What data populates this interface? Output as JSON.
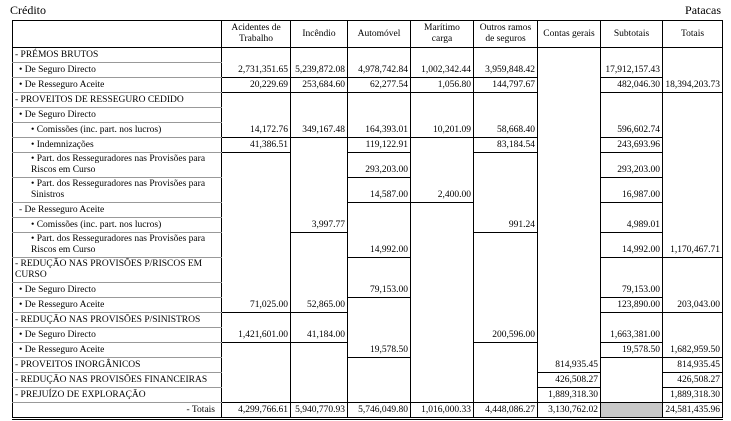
{
  "header": {
    "title": "Crédito",
    "unit": "Patacas"
  },
  "columns": [
    "Acidentes de Trabalho",
    "Incêndio",
    "Automóvel",
    "Marítimo carga",
    "Outros ramos de seguros",
    "Contas gerais",
    "Subtotais",
    "Totais"
  ],
  "sections": [
    {
      "label": "- PRÉMOS BRUTOS",
      "items": [
        {
          "label": "• De Seguro Directo",
          "cells": [
            "2,731,351.65",
            "5,239,872.08",
            "4,978,742.84",
            "1,002,342.44",
            "3,959,848.42",
            null,
            "17,912,157.43",
            null
          ]
        },
        {
          "label": "• De Resseguro Aceite",
          "cells": [
            "20,229.69",
            "253,684.60",
            "62,277.54",
            "1,056.80",
            "144,797.67",
            null,
            "482,046.30",
            "18,394,203.73"
          ]
        }
      ]
    },
    {
      "label": "- PROVEITOS DE RESSEGURO CEDIDO",
      "items": [
        {
          "label": "• De Seguro Directo",
          "items": [
            {
              "label": "• Comissões (inc. part. nos lucros)",
              "cells": [
                "14,172.76",
                "349,167.48",
                "164,393.01",
                "10,201.09",
                "58,668.40",
                null,
                "596,602.74",
                null
              ]
            },
            {
              "label": "• Indemnizações",
              "cells": [
                "41,386.51",
                null,
                "119,122.91",
                null,
                "83,184.54",
                null,
                "243,693.96",
                null
              ]
            },
            {
              "label": "• Part. dos Resseguradores nas Provisões para Riscos em Curso",
              "cells": [
                null,
                null,
                "293,203.00",
                null,
                null,
                null,
                "293,203.00",
                null
              ]
            },
            {
              "label": "• Part. dos Resseguradores nas Provisões para Sinistros",
              "cells": [
                null,
                null,
                "14,587.00",
                "2,400.00",
                null,
                null,
                "16,987.00",
                null
              ]
            }
          ]
        },
        {
          "label": "- De Resseguro Aceite",
          "items": [
            {
              "label": "• Comissões (inc. part. nos lucros)",
              "cells": [
                null,
                "3,997.77",
                null,
                null,
                "991.24",
                null,
                "4,989.01",
                null
              ]
            },
            {
              "label": "• Part. dos Resseguradores nas Provisões para Riscos em Curso",
              "cells": [
                null,
                null,
                "14,992.00",
                null,
                null,
                null,
                "14,992.00",
                "1,170,467.71"
              ]
            }
          ]
        }
      ]
    },
    {
      "label": "- REDUÇÃO NAS PROVISÕES P/RISCOS EM CURSO",
      "items": [
        {
          "label": "• De Seguro Directo",
          "cells": [
            null,
            null,
            "79,153.00",
            null,
            null,
            null,
            "79,153.00",
            null
          ]
        },
        {
          "label": "• De Resseguro Aceite",
          "cells": [
            "71,025.00",
            "52,865.00",
            null,
            null,
            null,
            null,
            "123,890.00",
            "203,043.00"
          ]
        }
      ]
    },
    {
      "label": "- REDUÇÃO NAS PROVISÕES P/SINISTROS",
      "items": [
        {
          "label": "• De Seguro Directo",
          "cells": [
            "1,421,601.00",
            "41,184.00",
            null,
            null,
            "200,596.00",
            null,
            "1,663,381.00",
            null
          ]
        },
        {
          "label": "• De Resseguro Aceite",
          "cells": [
            null,
            null,
            "19,578.50",
            null,
            null,
            null,
            "19,578.50",
            "1,682,959.50"
          ]
        }
      ]
    },
    {
      "label": "- PROVEITOS INORGÂNICOS",
      "cells": [
        null,
        null,
        null,
        null,
        null,
        "814,935.45",
        null,
        "814,935.45"
      ]
    },
    {
      "label": "- REDUÇÃO NAS PROVISÕES FINANCEIRAS",
      "cells": [
        null,
        null,
        null,
        null,
        null,
        "426,508.27",
        null,
        "426,508.27"
      ]
    },
    {
      "label": "- PREJUÍZO DE EXPLORAÇÃO",
      "cells": [
        null,
        null,
        null,
        null,
        null,
        "1,889,318.30",
        null,
        "1,889,318.30"
      ]
    }
  ],
  "totals": {
    "label": "- Totais",
    "cells": [
      "4,299,766.61",
      "5,940,770.93",
      "5,746,049.80",
      "1,016,000.33",
      "4,448,086.27",
      "3,130,762.02",
      null,
      "24,581,435.96"
    ]
  }
}
